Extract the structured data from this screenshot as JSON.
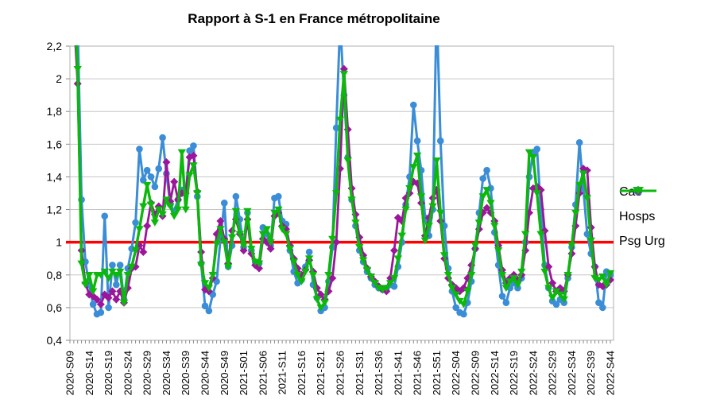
{
  "title": "Rapport à S-1 en France métropolitaine",
  "colors": {
    "cas": "#3a8dd6",
    "hosps": "#9b169b",
    "psg_urg": "#0bb80b",
    "reference_line": "#ff0000",
    "grid": "#c6c6c6",
    "plot_border": "#b0b0b0",
    "tick": "#898989",
    "axis_text": "#000000"
  },
  "y_axis": {
    "min": 0.4,
    "max": 2.2,
    "step": 0.2,
    "labels": [
      "0,4",
      "0,6",
      "0,8",
      "1",
      "1,2",
      "1,4",
      "1,6",
      "1,8",
      "2",
      "2,2"
    ]
  },
  "x_axis": {
    "tick_label_every": 5,
    "tick_labels": [
      "2020-S09",
      "2020-S14",
      "2020-S19",
      "2020-S24",
      "2020-S29",
      "2020-S34",
      "2020-S39",
      "2020-S44",
      "2020-S49",
      "2021-S01",
      "2021-S06",
      "2021-S11",
      "2021-S16",
      "2021-S21",
      "2021-S26",
      "2021-S31",
      "2021-S36",
      "2021-S41",
      "2021-S46",
      "2021-S51",
      "2022-S04",
      "2022-S09",
      "2022-S14",
      "2022-S19",
      "2022-S24",
      "2022-S29",
      "2022-S34",
      "2022-S39",
      "2022-S44"
    ],
    "tick_indices": [
      0,
      5,
      10,
      15,
      20,
      25,
      30,
      35,
      40,
      45,
      50,
      55,
      60,
      65,
      70,
      75,
      80,
      85,
      90,
      95,
      100,
      105,
      110,
      115,
      120,
      125,
      130,
      135,
      140
    ],
    "n_points": 141
  },
  "reference_line_value": 1,
  "legend": [
    {
      "label": "Cas",
      "marker": "circle",
      "color": "#3a8dd6"
    },
    {
      "label": "Hosps",
      "marker": "diamond",
      "color": "#9b169b"
    },
    {
      "label": "Psg Urg",
      "marker": "triangle-down",
      "color": "#0bb80b"
    }
  ],
  "chart_data": {
    "type": "line",
    "x_start": "2020-S09",
    "x_end": "2022-S44",
    "x_unit": "ISO week (weekly points, labels every 5 weeks)",
    "ylim": [
      0.4,
      2.2
    ],
    "grid": "horizontal only",
    "legend_position": "right",
    "note": "values above 2.2 are clipped at the plot top",
    "series": [
      {
        "name": "Cas",
        "marker": "circle",
        "color": "#3a8dd6",
        "values": [
          null,
          2.55,
          2.35,
          1.26,
          0.88,
          0.74,
          0.62,
          0.56,
          0.57,
          1.16,
          0.6,
          0.86,
          0.74,
          0.86,
          0.65,
          0.84,
          0.96,
          1.12,
          1.57,
          1.38,
          1.44,
          1.4,
          1.34,
          1.45,
          1.64,
          1.42,
          1.23,
          1.19,
          1.26,
          1.32,
          1.3,
          1.56,
          1.59,
          1.28,
          0.87,
          0.61,
          0.58,
          0.68,
          0.76,
          1.02,
          1.24,
          0.85,
          0.98,
          1.28,
          1.14,
          0.97,
          1.18,
          0.95,
          0.88,
          0.87,
          1.09,
          1.05,
          0.98,
          1.27,
          1.28,
          1.13,
          1.11,
          0.95,
          0.82,
          0.75,
          0.77,
          0.85,
          0.94,
          0.74,
          0.66,
          0.58,
          0.6,
          0.76,
          0.97,
          1.7,
          2.35,
          1.9,
          1.52,
          1.26,
          1.1,
          0.95,
          0.88,
          0.82,
          0.78,
          0.74,
          0.72,
          0.71,
          0.72,
          0.74,
          0.73,
          0.85,
          1.0,
          1.23,
          1.4,
          1.84,
          1.62,
          1.44,
          1.15,
          1.04,
          1.2,
          2.45,
          1.62,
          1.1,
          0.84,
          0.7,
          0.6,
          0.57,
          0.56,
          0.63,
          0.76,
          0.96,
          1.18,
          1.39,
          1.44,
          1.33,
          1.06,
          0.86,
          0.67,
          0.63,
          0.72,
          0.75,
          0.72,
          0.78,
          1.0,
          1.4,
          1.55,
          1.57,
          1.2,
          0.86,
          0.72,
          0.64,
          0.62,
          0.65,
          0.63,
          0.78,
          0.97,
          1.23,
          1.61,
          1.33,
          1.05,
          0.93,
          0.85,
          0.63,
          0.6,
          0.82,
          0.8
        ]
      },
      {
        "name": "Hosps",
        "marker": "diamond",
        "color": "#9b169b",
        "values": [
          null,
          2.4,
          1.97,
          0.95,
          0.75,
          0.68,
          0.67,
          0.65,
          0.62,
          0.68,
          0.66,
          0.7,
          0.65,
          0.7,
          0.63,
          0.72,
          0.84,
          0.85,
          0.98,
          0.94,
          1.1,
          1.24,
          1.17,
          1.22,
          1.16,
          1.49,
          1.25,
          1.37,
          1.26,
          1.3,
          1.3,
          1.52,
          1.53,
          1.31,
          0.94,
          0.71,
          0.7,
          0.78,
          1.05,
          1.13,
          1.02,
          0.87,
          1.07,
          1.14,
          1.05,
          0.95,
          1.14,
          0.93,
          0.86,
          0.84,
          1.02,
          1.0,
          0.96,
          1.16,
          1.18,
          1.1,
          1.08,
          0.98,
          0.9,
          0.84,
          0.8,
          0.83,
          0.89,
          0.82,
          0.72,
          0.68,
          0.65,
          0.7,
          0.78,
          1.0,
          1.45,
          2.06,
          1.69,
          1.33,
          1.17,
          1.03,
          0.92,
          0.84,
          0.79,
          0.76,
          0.73,
          0.71,
          0.7,
          0.78,
          0.95,
          1.15,
          1.13,
          1.27,
          1.3,
          1.37,
          1.36,
          1.24,
          1.04,
          1.15,
          1.27,
          1.32,
          1.13,
          0.9,
          0.78,
          0.74,
          0.72,
          0.7,
          0.72,
          0.78,
          0.86,
          0.96,
          1.08,
          1.18,
          1.21,
          1.18,
          1.13,
          0.98,
          0.83,
          0.75,
          0.78,
          0.8,
          0.77,
          0.8,
          0.95,
          1.18,
          1.33,
          1.34,
          1.32,
          1.07,
          0.85,
          0.75,
          0.7,
          0.72,
          0.7,
          0.8,
          0.93,
          1.1,
          1.3,
          1.45,
          1.44,
          1.09,
          0.85,
          0.74,
          0.73,
          0.74,
          0.77
        ]
      },
      {
        "name": "Psg Urg",
        "marker": "triangle-down",
        "color": "#0bb80b",
        "values": [
          null,
          2.5,
          2.06,
          0.87,
          0.74,
          0.8,
          0.7,
          0.8,
          0.8,
          0.82,
          0.78,
          0.82,
          0.8,
          0.82,
          0.63,
          0.8,
          0.85,
          0.95,
          1.08,
          1.22,
          1.35,
          1.23,
          1.12,
          1.2,
          1.17,
          1.26,
          1.22,
          1.16,
          1.2,
          1.55,
          1.2,
          1.41,
          1.47,
          1.3,
          0.86,
          0.75,
          0.72,
          0.8,
          0.99,
          1.08,
          1.0,
          0.85,
          1.03,
          1.19,
          1.05,
          0.98,
          1.19,
          0.96,
          0.88,
          0.87,
          1.05,
          1.08,
          1.0,
          1.18,
          1.2,
          1.08,
          1.05,
          0.96,
          0.88,
          0.8,
          0.76,
          0.82,
          0.9,
          0.8,
          0.65,
          0.6,
          0.63,
          0.8,
          1.02,
          1.3,
          1.75,
          2.03,
          1.5,
          1.26,
          1.12,
          0.97,
          0.89,
          0.83,
          0.79,
          0.75,
          0.72,
          0.71,
          0.72,
          0.75,
          0.78,
          0.9,
          1.04,
          1.2,
          1.33,
          1.46,
          1.53,
          1.28,
          1.01,
          1.1,
          1.22,
          1.5,
          1.18,
          0.92,
          0.8,
          0.72,
          0.68,
          0.64,
          0.62,
          0.7,
          0.8,
          0.98,
          1.12,
          1.28,
          1.32,
          1.24,
          1.1,
          0.95,
          0.8,
          0.72,
          0.76,
          0.78,
          0.74,
          0.82,
          1.05,
          1.55,
          1.52,
          1.3,
          1.05,
          0.82,
          0.72,
          0.66,
          0.7,
          0.68,
          0.65,
          0.8,
          0.98,
          1.18,
          1.35,
          1.42,
          1.27,
          1.01,
          0.78,
          0.77,
          0.79,
          0.74,
          0.81
        ]
      }
    ]
  }
}
